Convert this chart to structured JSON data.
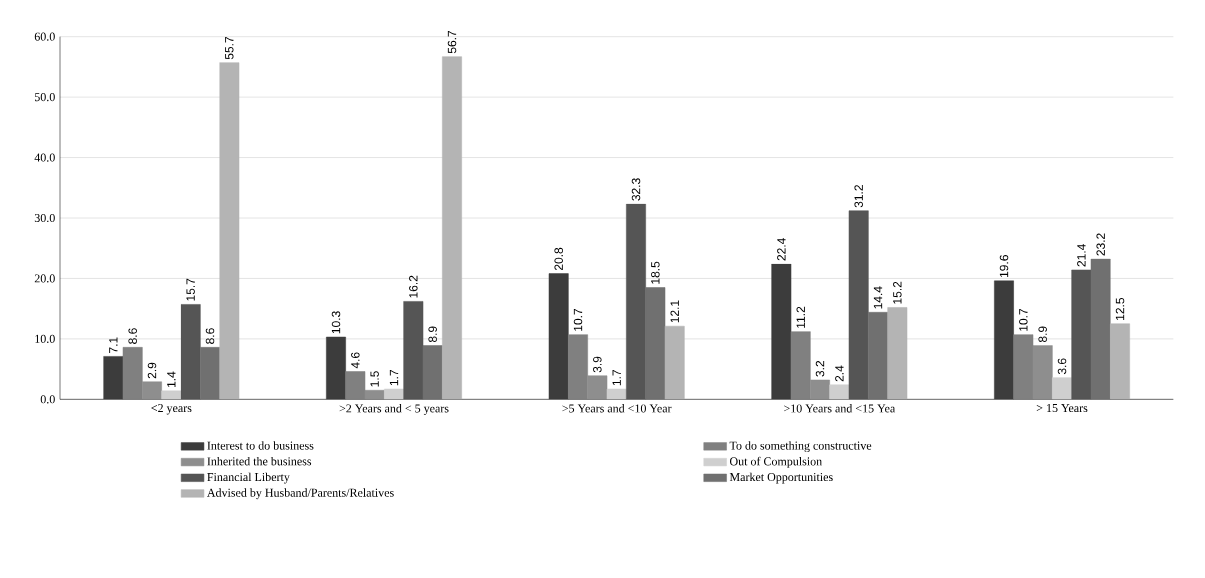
{
  "chart_data": {
    "type": "bar",
    "categories": [
      "<2 years",
      ">2 Years and < 5 years",
      ">5 Years and <10 Year",
      ">10 Years and <15 Yea",
      "> 15 Years"
    ],
    "series": [
      {
        "name": "Interest to do business",
        "color": "#3c3c3c",
        "values": [
          7.1,
          10.3,
          20.8,
          22.4,
          19.6
        ]
      },
      {
        "name": "To do something constructive",
        "color": "#808080",
        "values": [
          8.6,
          4.6,
          10.7,
          11.2,
          10.7
        ]
      },
      {
        "name": "Inherited the business",
        "color": "#8e8e8e",
        "values": [
          2.9,
          1.5,
          3.9,
          3.2,
          8.9
        ]
      },
      {
        "name": "Out of Compulsion",
        "color": "#cfcfcf",
        "values": [
          1.4,
          1.7,
          1.7,
          2.4,
          3.6
        ]
      },
      {
        "name": "Financial Liberty",
        "color": "#555555",
        "values": [
          15.7,
          16.2,
          32.3,
          31.2,
          21.4
        ]
      },
      {
        "name": "Market Opportunities",
        "color": "#707070",
        "values": [
          8.6,
          8.9,
          18.5,
          14.4,
          23.2
        ]
      },
      {
        "name": "Advised by Husband/Parents/Relatives",
        "color": "#b4b4b4",
        "values": [
          55.7,
          56.7,
          12.1,
          15.2,
          12.5
        ]
      }
    ],
    "ylim": [
      0,
      60
    ],
    "yticks": [
      {
        "value": 0,
        "label": "0.0"
      },
      {
        "value": 10,
        "label": "10.0"
      },
      {
        "value": 20,
        "label": "20.0"
      },
      {
        "value": 30,
        "label": "30.0"
      },
      {
        "value": 40,
        "label": "40.0"
      },
      {
        "value": 50,
        "label": "50.0"
      },
      {
        "value": 60,
        "label": "60.0"
      }
    ],
    "grid": "y",
    "legend": "bottom",
    "data_labels": true
  }
}
